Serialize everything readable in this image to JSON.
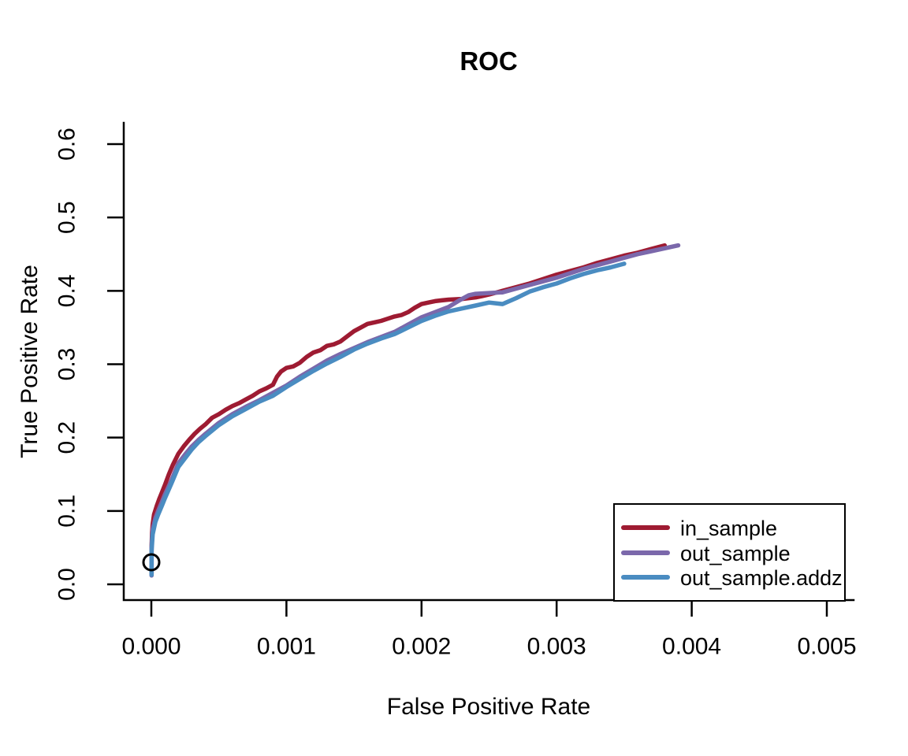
{
  "chart_data": {
    "type": "line",
    "title": "ROC",
    "xlabel": "False Positive Rate",
    "ylabel": "True Positive Rate",
    "xlim": [
      0,
      0.005
    ],
    "ylim": [
      0,
      0.6
    ],
    "grid": false,
    "background": "#ffffff",
    "axis_color": "#000000",
    "legend_position": "bottom-right",
    "x_axis": {
      "tick_values": [
        0.0,
        0.001,
        0.002,
        0.003,
        0.004,
        0.005
      ],
      "tick_labels": [
        "0.000",
        "0.001",
        "0.002",
        "0.003",
        "0.004",
        "0.005"
      ]
    },
    "y_axis": {
      "tick_values": [
        0.0,
        0.1,
        0.2,
        0.3,
        0.4,
        0.5,
        0.6
      ],
      "tick_labels": [
        "0.0",
        "0.1",
        "0.2",
        "0.3",
        "0.4",
        "0.5",
        "0.6"
      ]
    },
    "marker": {
      "shape": "open-circle",
      "x": 0.0,
      "y": 0.03,
      "color": "#000000"
    },
    "series": [
      {
        "name": "in_sample",
        "color": "#9e1b32",
        "points": [
          [
            2e-06,
            0.015
          ],
          [
            2e-06,
            0.05
          ],
          [
            5e-06,
            0.07
          ],
          [
            1e-05,
            0.082
          ],
          [
            2e-05,
            0.095
          ],
          [
            4e-05,
            0.107
          ],
          [
            6e-05,
            0.117
          ],
          [
            8e-05,
            0.126
          ],
          [
            0.0001,
            0.135
          ],
          [
            0.00013,
            0.15
          ],
          [
            0.00016,
            0.163
          ],
          [
            0.0002,
            0.178
          ],
          [
            0.00024,
            0.188
          ],
          [
            0.00028,
            0.197
          ],
          [
            0.00032,
            0.205
          ],
          [
            0.00036,
            0.212
          ],
          [
            0.0004,
            0.218
          ],
          [
            0.00045,
            0.227
          ],
          [
            0.0005,
            0.232
          ],
          [
            0.00055,
            0.238
          ],
          [
            0.0006,
            0.243
          ],
          [
            0.00065,
            0.247
          ],
          [
            0.0007,
            0.252
          ],
          [
            0.00075,
            0.257
          ],
          [
            0.0008,
            0.263
          ],
          [
            0.00085,
            0.267
          ],
          [
            0.0009,
            0.272
          ],
          [
            0.00093,
            0.283
          ],
          [
            0.00096,
            0.29
          ],
          [
            0.001,
            0.295
          ],
          [
            0.00105,
            0.297
          ],
          [
            0.0011,
            0.302
          ],
          [
            0.00115,
            0.31
          ],
          [
            0.0012,
            0.316
          ],
          [
            0.00125,
            0.319
          ],
          [
            0.0013,
            0.325
          ],
          [
            0.00135,
            0.327
          ],
          [
            0.0014,
            0.331
          ],
          [
            0.00145,
            0.338
          ],
          [
            0.0015,
            0.345
          ],
          [
            0.00155,
            0.35
          ],
          [
            0.0016,
            0.355
          ],
          [
            0.00165,
            0.357
          ],
          [
            0.0017,
            0.359
          ],
          [
            0.00175,
            0.362
          ],
          [
            0.0018,
            0.365
          ],
          [
            0.00185,
            0.367
          ],
          [
            0.0019,
            0.371
          ],
          [
            0.00195,
            0.377
          ],
          [
            0.002,
            0.382
          ],
          [
            0.00205,
            0.384
          ],
          [
            0.0021,
            0.386
          ],
          [
            0.00215,
            0.387
          ],
          [
            0.0022,
            0.388
          ],
          [
            0.0023,
            0.389
          ],
          [
            0.00235,
            0.39
          ],
          [
            0.0024,
            0.391
          ],
          [
            0.00245,
            0.393
          ],
          [
            0.0025,
            0.395
          ],
          [
            0.0026,
            0.4
          ],
          [
            0.0027,
            0.405
          ],
          [
            0.0028,
            0.41
          ],
          [
            0.0029,
            0.416
          ],
          [
            0.003,
            0.422
          ],
          [
            0.0031,
            0.427
          ],
          [
            0.0032,
            0.432
          ],
          [
            0.0033,
            0.438
          ],
          [
            0.0034,
            0.443
          ],
          [
            0.0035,
            0.448
          ],
          [
            0.0036,
            0.452
          ],
          [
            0.0037,
            0.457
          ],
          [
            0.0038,
            0.462
          ]
        ]
      },
      {
        "name": "out_sample",
        "color": "#7b68ab",
        "points": [
          [
            2e-06,
            0.012
          ],
          [
            2e-06,
            0.05
          ],
          [
            1e-05,
            0.075
          ],
          [
            3e-05,
            0.09
          ],
          [
            5e-05,
            0.1
          ],
          [
            8e-05,
            0.113
          ],
          [
            0.0001,
            0.122
          ],
          [
            0.00015,
            0.142
          ],
          [
            0.0002,
            0.165
          ],
          [
            0.00025,
            0.177
          ],
          [
            0.0003,
            0.188
          ],
          [
            0.00035,
            0.197
          ],
          [
            0.0004,
            0.205
          ],
          [
            0.0005,
            0.22
          ],
          [
            0.0006,
            0.232
          ],
          [
            0.0007,
            0.242
          ],
          [
            0.0008,
            0.251
          ],
          [
            0.0009,
            0.261
          ],
          [
            0.001,
            0.271
          ],
          [
            0.0011,
            0.283
          ],
          [
            0.0012,
            0.294
          ],
          [
            0.0013,
            0.305
          ],
          [
            0.0014,
            0.314
          ],
          [
            0.0015,
            0.322
          ],
          [
            0.0016,
            0.33
          ],
          [
            0.0017,
            0.337
          ],
          [
            0.0018,
            0.344
          ],
          [
            0.0019,
            0.354
          ],
          [
            0.002,
            0.364
          ],
          [
            0.0021,
            0.371
          ],
          [
            0.0022,
            0.378
          ],
          [
            0.00228,
            0.387
          ],
          [
            0.00235,
            0.394
          ],
          [
            0.0024,
            0.396
          ],
          [
            0.0025,
            0.397
          ],
          [
            0.0026,
            0.398
          ],
          [
            0.0027,
            0.403
          ],
          [
            0.0028,
            0.408
          ],
          [
            0.0029,
            0.413
          ],
          [
            0.003,
            0.418
          ],
          [
            0.0031,
            0.424
          ],
          [
            0.0032,
            0.43
          ],
          [
            0.0033,
            0.435
          ],
          [
            0.0034,
            0.44
          ],
          [
            0.0035,
            0.445
          ],
          [
            0.0036,
            0.45
          ],
          [
            0.0037,
            0.454
          ],
          [
            0.0038,
            0.458
          ],
          [
            0.0039,
            0.462
          ]
        ]
      },
      {
        "name": "out_sample.addz",
        "color": "#4a8cc1",
        "points": [
          [
            2e-06,
            0.013
          ],
          [
            2e-06,
            0.045
          ],
          [
            1e-05,
            0.068
          ],
          [
            3e-05,
            0.085
          ],
          [
            5e-05,
            0.095
          ],
          [
            8e-05,
            0.108
          ],
          [
            0.0001,
            0.117
          ],
          [
            0.00015,
            0.138
          ],
          [
            0.0002,
            0.16
          ],
          [
            0.00025,
            0.172
          ],
          [
            0.0003,
            0.184
          ],
          [
            0.00035,
            0.194
          ],
          [
            0.0004,
            0.202
          ],
          [
            0.0005,
            0.217
          ],
          [
            0.0006,
            0.229
          ],
          [
            0.0007,
            0.239
          ],
          [
            0.0008,
            0.249
          ],
          [
            0.0009,
            0.257
          ],
          [
            0.001,
            0.269
          ],
          [
            0.0011,
            0.28
          ],
          [
            0.0012,
            0.291
          ],
          [
            0.0013,
            0.301
          ],
          [
            0.0014,
            0.31
          ],
          [
            0.0015,
            0.32
          ],
          [
            0.0016,
            0.328
          ],
          [
            0.0017,
            0.335
          ],
          [
            0.0018,
            0.341
          ],
          [
            0.0019,
            0.35
          ],
          [
            0.002,
            0.359
          ],
          [
            0.0021,
            0.366
          ],
          [
            0.0022,
            0.372
          ],
          [
            0.0023,
            0.376
          ],
          [
            0.0024,
            0.38
          ],
          [
            0.0025,
            0.384
          ],
          [
            0.0026,
            0.382
          ],
          [
            0.0027,
            0.39
          ],
          [
            0.0028,
            0.399
          ],
          [
            0.0029,
            0.405
          ],
          [
            0.003,
            0.41
          ],
          [
            0.0031,
            0.417
          ],
          [
            0.0032,
            0.423
          ],
          [
            0.0033,
            0.428
          ],
          [
            0.0034,
            0.432
          ],
          [
            0.0035,
            0.437
          ]
        ]
      }
    ],
    "legend": {
      "entries": [
        "in_sample",
        "out_sample",
        "out_sample.addz"
      ]
    }
  }
}
